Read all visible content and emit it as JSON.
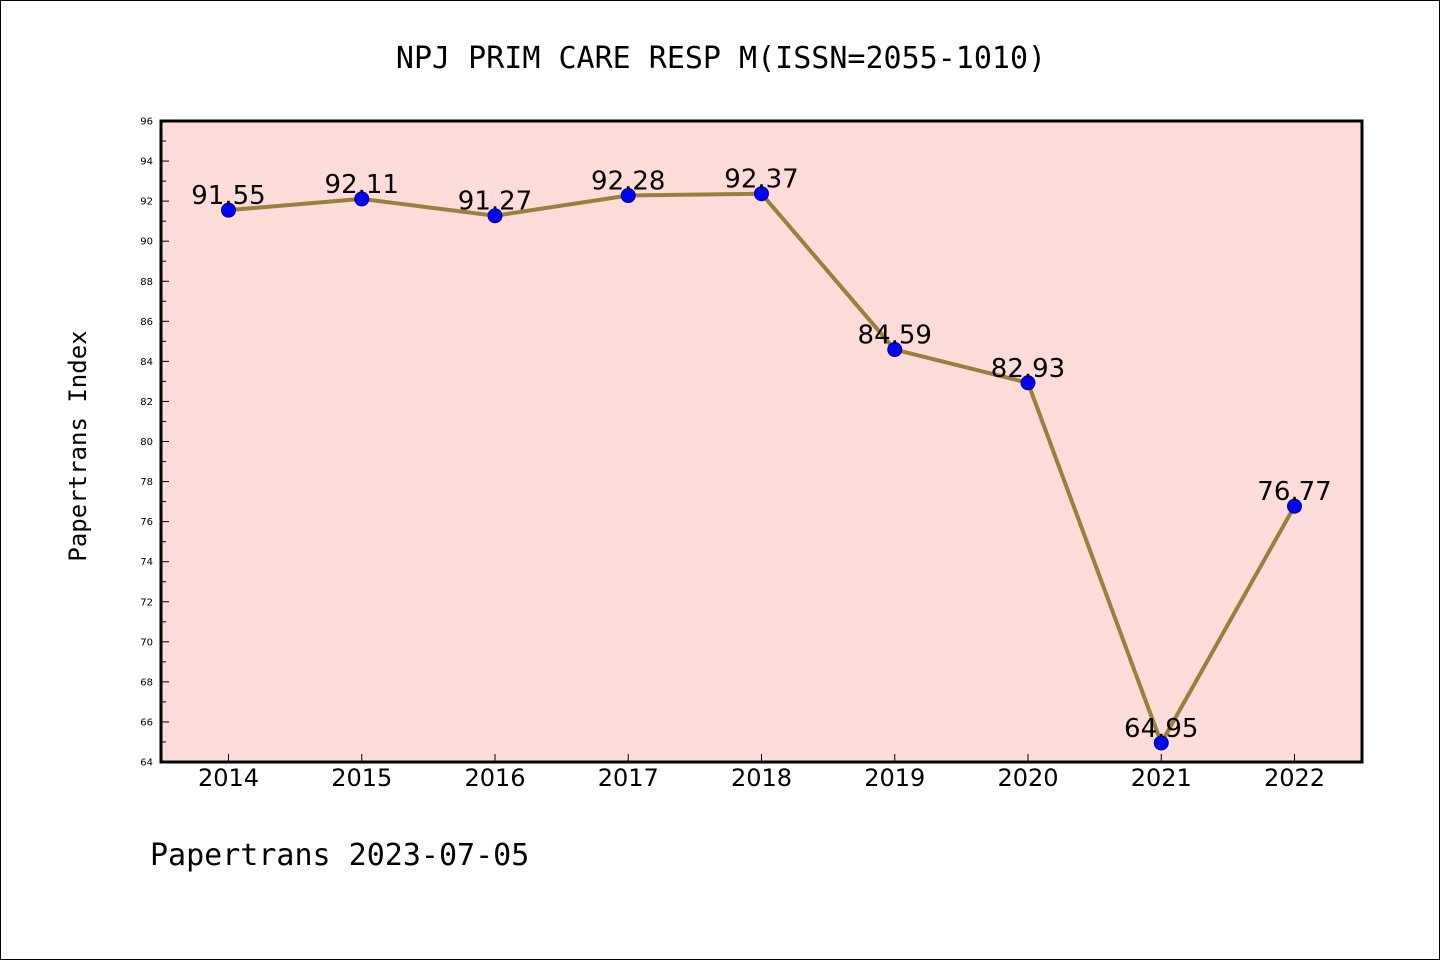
{
  "chart_data": {
    "type": "line",
    "title": "NPJ PRIM CARE RESP M(ISSN=2055-1010)",
    "xlabel": "",
    "ylabel": "Papertrans Index",
    "categories": [
      "2014",
      "2015",
      "2016",
      "2017",
      "2018",
      "2019",
      "2020",
      "2021",
      "2022"
    ],
    "series": [
      {
        "values": [
          91.55,
          92.11,
          91.27,
          92.28,
          92.37,
          84.59,
          82.93,
          64.95,
          76.77
        ],
        "data_labels": [
          "91.55",
          "92.11",
          "91.27",
          "92.28",
          "92.37",
          "84.59",
          "82.93",
          "64.95",
          "76.77"
        ]
      }
    ],
    "ylim": [
      64,
      96
    ],
    "yticks": [
      "64",
      "66",
      "68",
      "70",
      "72",
      "74",
      "76",
      "78",
      "80",
      "82",
      "84",
      "86",
      "88",
      "90",
      "92",
      "94",
      "96"
    ],
    "grid": false,
    "legend": "none"
  },
  "footer": "Papertrans 2023-07-05",
  "colors": {
    "plot_background": "#fddcd9",
    "line": "#9b7f3c",
    "marker_fill": "#0000ff",
    "marker_edge": "#000080",
    "axis": "#000000"
  }
}
